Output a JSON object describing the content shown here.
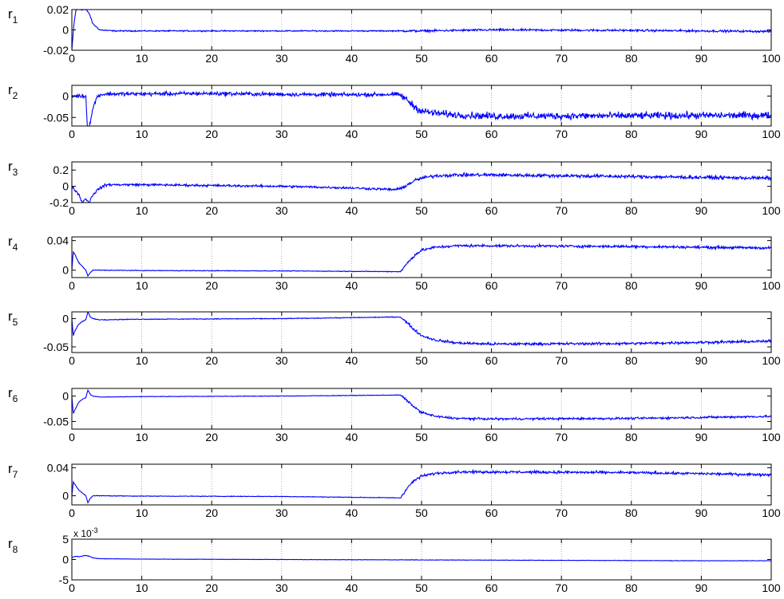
{
  "figure": {
    "background": "#ffffff",
    "line_color": "#0000ff",
    "grid_color": "#9a9a9a"
  },
  "chart_data": [
    {
      "type": "line",
      "name_label": {
        "base": "r",
        "sub": "1"
      },
      "xlim": [
        0,
        100
      ],
      "ylim": [
        -0.02,
        0.02
      ],
      "xticks": [
        0,
        10,
        20,
        30,
        40,
        50,
        60,
        70,
        80,
        90,
        100
      ],
      "yticks": [
        {
          "value": -0.02,
          "label": "-0.02"
        },
        {
          "value": 0,
          "label": "0"
        },
        {
          "value": 0.02,
          "label": "0.02"
        }
      ],
      "grid": "vertical dotted",
      "series": [
        {
          "x": [
            0,
            0.3,
            0.6,
            1,
            2,
            2.5,
            3,
            4,
            6,
            47,
            50,
            60,
            80,
            100
          ],
          "y": [
            -0.02,
            0.006,
            0.02,
            0.02,
            0.02,
            0.016,
            0.006,
            0.0,
            -0.001,
            -0.001,
            -0.001,
            0.0,
            -0.0005,
            -0.0015
          ]
        }
      ],
      "noise": [
        [
          0,
          5,
          0.0006
        ],
        [
          5,
          47,
          0.0005
        ],
        [
          47,
          100,
          0.0009
        ]
      ]
    },
    {
      "type": "line",
      "name_label": {
        "base": "r",
        "sub": "2"
      },
      "xlim": [
        0,
        100
      ],
      "ylim": [
        -0.07,
        0.025
      ],
      "xticks": [
        0,
        10,
        20,
        30,
        40,
        50,
        60,
        70,
        80,
        90,
        100
      ],
      "yticks": [
        {
          "value": -0.05,
          "label": "-0.05"
        },
        {
          "value": 0,
          "label": "0"
        }
      ],
      "grid": "vertical dotted",
      "series": [
        {
          "x": [
            0,
            2,
            2.2,
            2.5,
            3,
            3.5,
            4,
            5,
            10,
            20,
            30,
            40,
            46.5,
            47,
            48,
            49,
            50,
            52,
            55,
            60,
            100
          ],
          "y": [
            0,
            0,
            -0.07,
            -0.07,
            -0.03,
            -0.005,
            0.003,
            0.005,
            0.005,
            0.006,
            0.004,
            0.003,
            0.004,
            0.002,
            -0.01,
            -0.025,
            -0.035,
            -0.04,
            -0.044,
            -0.047,
            -0.045
          ]
        }
      ],
      "noise": [
        [
          0,
          5,
          0.004
        ],
        [
          5,
          47,
          0.004
        ],
        [
          47,
          100,
          0.007
        ]
      ]
    },
    {
      "type": "line",
      "name_label": {
        "base": "r",
        "sub": "3"
      },
      "xlim": [
        0,
        100
      ],
      "ylim": [
        -0.2,
        0.3
      ],
      "xticks": [
        0,
        10,
        20,
        30,
        40,
        50,
        60,
        70,
        80,
        90,
        100
      ],
      "yticks": [
        {
          "value": -0.2,
          "label": "-0.2"
        },
        {
          "value": 0,
          "label": "0"
        },
        {
          "value": 0.2,
          "label": "0.2"
        }
      ],
      "grid": "vertical dotted",
      "series": [
        {
          "x": [
            0,
            0.5,
            1,
            1.5,
            2,
            2.5,
            3,
            4,
            5,
            10,
            20,
            30,
            40,
            46,
            47,
            48,
            49,
            50,
            52,
            55,
            60,
            70,
            80,
            90,
            100
          ],
          "y": [
            0,
            -0.05,
            -0.1,
            -0.2,
            -0.15,
            -0.2,
            -0.1,
            -0.02,
            0.02,
            0.02,
            0.01,
            0.0,
            -0.02,
            -0.04,
            -0.03,
            0.02,
            0.07,
            0.1,
            0.13,
            0.14,
            0.14,
            0.13,
            0.12,
            0.11,
            0.1
          ]
        }
      ],
      "noise": [
        [
          0,
          5,
          0.015
        ],
        [
          5,
          47,
          0.012
        ],
        [
          47,
          100,
          0.018
        ]
      ]
    },
    {
      "type": "line",
      "name_label": {
        "base": "r",
        "sub": "4"
      },
      "xlim": [
        0,
        100
      ],
      "ylim": [
        -0.01,
        0.045
      ],
      "xticks": [
        0,
        10,
        20,
        30,
        40,
        50,
        60,
        70,
        80,
        90,
        100
      ],
      "yticks": [
        {
          "value": 0,
          "label": "0"
        },
        {
          "value": 0.04,
          "label": "0.04"
        }
      ],
      "grid": "vertical dotted",
      "series": [
        {
          "x": [
            0,
            0.2,
            0.5,
            1,
            1.5,
            2,
            2.3,
            2.6,
            3,
            4,
            10,
            30,
            47,
            48,
            49,
            50,
            52,
            55,
            60,
            80,
            100
          ],
          "y": [
            0,
            0.025,
            0.02,
            0.01,
            0.005,
            0.0,
            -0.008,
            -0.004,
            0.0,
            0.0,
            -0.0005,
            -0.001,
            -0.002,
            0.01,
            0.02,
            0.027,
            0.031,
            0.033,
            0.033,
            0.032,
            0.03
          ]
        }
      ],
      "noise": [
        [
          0,
          5,
          0.0004
        ],
        [
          5,
          47,
          0.0004
        ],
        [
          47,
          100,
          0.0015
        ]
      ]
    },
    {
      "type": "line",
      "name_label": {
        "base": "r",
        "sub": "5"
      },
      "xlim": [
        0,
        100
      ],
      "ylim": [
        -0.06,
        0.012
      ],
      "xticks": [
        0,
        10,
        20,
        30,
        40,
        50,
        60,
        70,
        80,
        90,
        100
      ],
      "yticks": [
        {
          "value": -0.05,
          "label": "-0.05"
        },
        {
          "value": 0,
          "label": "0"
        }
      ],
      "grid": "vertical dotted",
      "series": [
        {
          "x": [
            0,
            0.2,
            0.5,
            1,
            1.5,
            2,
            2.3,
            2.6,
            3,
            4,
            10,
            30,
            47,
            48,
            49,
            50,
            52,
            55,
            60,
            80,
            100
          ],
          "y": [
            0,
            -0.03,
            -0.02,
            -0.01,
            -0.005,
            -0.002,
            0.012,
            0.004,
            0.0,
            -0.002,
            -0.001,
            0.0,
            0.003,
            -0.008,
            -0.02,
            -0.03,
            -0.038,
            -0.043,
            -0.045,
            -0.044,
            -0.04
          ]
        }
      ],
      "noise": [
        [
          0,
          5,
          0.0006
        ],
        [
          5,
          47,
          0.0006
        ],
        [
          47,
          100,
          0.002
        ]
      ]
    },
    {
      "type": "line",
      "name_label": {
        "base": "r",
        "sub": "6"
      },
      "xlim": [
        0,
        100
      ],
      "ylim": [
        -0.065,
        0.015
      ],
      "xticks": [
        0,
        10,
        20,
        30,
        40,
        50,
        60,
        70,
        80,
        90,
        100
      ],
      "yticks": [
        {
          "value": -0.05,
          "label": "-0.05"
        },
        {
          "value": 0,
          "label": "0"
        }
      ],
      "grid": "vertical dotted",
      "series": [
        {
          "x": [
            0,
            0.2,
            0.5,
            1,
            1.5,
            2,
            2.3,
            2.6,
            3,
            4,
            10,
            30,
            47,
            48,
            49,
            50,
            52,
            55,
            60,
            80,
            100
          ],
          "y": [
            0,
            -0.035,
            -0.025,
            -0.012,
            -0.006,
            -0.003,
            0.012,
            0.004,
            0.0,
            -0.002,
            -0.001,
            0.0,
            0.002,
            -0.01,
            -0.022,
            -0.032,
            -0.04,
            -0.044,
            -0.045,
            -0.044,
            -0.04
          ]
        }
      ],
      "noise": [
        [
          0,
          5,
          0.0005
        ],
        [
          5,
          47,
          0.0005
        ],
        [
          47,
          100,
          0.0018
        ]
      ]
    },
    {
      "type": "line",
      "name_label": {
        "base": "r",
        "sub": "7"
      },
      "xlim": [
        0,
        100
      ],
      "ylim": [
        -0.013,
        0.045
      ],
      "xticks": [
        0,
        10,
        20,
        30,
        40,
        50,
        60,
        70,
        80,
        90,
        100
      ],
      "yticks": [
        {
          "value": 0,
          "label": "0"
        },
        {
          "value": 0.04,
          "label": "0.04"
        }
      ],
      "grid": "vertical dotted",
      "series": [
        {
          "x": [
            0,
            0.2,
            0.5,
            1,
            1.5,
            2,
            2.3,
            2.6,
            3,
            4,
            10,
            30,
            47,
            48,
            49,
            50,
            52,
            55,
            60,
            80,
            100
          ],
          "y": [
            0,
            0.02,
            0.015,
            0.008,
            0.004,
            0.0,
            -0.01,
            -0.004,
            0.0,
            0.0,
            -0.0005,
            -0.001,
            -0.003,
            0.012,
            0.022,
            0.028,
            0.032,
            0.034,
            0.034,
            0.033,
            0.03
          ]
        }
      ],
      "noise": [
        [
          0,
          5,
          0.0004
        ],
        [
          5,
          47,
          0.0004
        ],
        [
          47,
          100,
          0.0016
        ]
      ]
    },
    {
      "type": "line",
      "name_label": {
        "base": "r",
        "sub": "8"
      },
      "xlim": [
        0,
        100
      ],
      "ylim": [
        -5,
        5
      ],
      "xticks": [
        0,
        10,
        20,
        30,
        40,
        50,
        60,
        70,
        80,
        90,
        100
      ],
      "yticks": [
        {
          "value": -5,
          "label": "-5"
        },
        {
          "value": 0,
          "label": "0"
        },
        {
          "value": 5,
          "label": "5"
        }
      ],
      "y_exponent": {
        "base": "x 10",
        "exp": "-3"
      },
      "grid": "vertical dotted",
      "series": [
        {
          "x": [
            0,
            0.5,
            1,
            2,
            2.5,
            3,
            4,
            10,
            30,
            50,
            70,
            90,
            100
          ],
          "y": [
            0.5,
            0.8,
            0.7,
            1.0,
            0.8,
            0.4,
            0.2,
            0.1,
            0.0,
            -0.1,
            -0.2,
            -0.3,
            -0.3
          ]
        }
      ],
      "noise": [
        [
          0,
          5,
          0.05
        ],
        [
          5,
          47,
          0.04
        ],
        [
          47,
          100,
          0.05
        ]
      ]
    }
  ]
}
